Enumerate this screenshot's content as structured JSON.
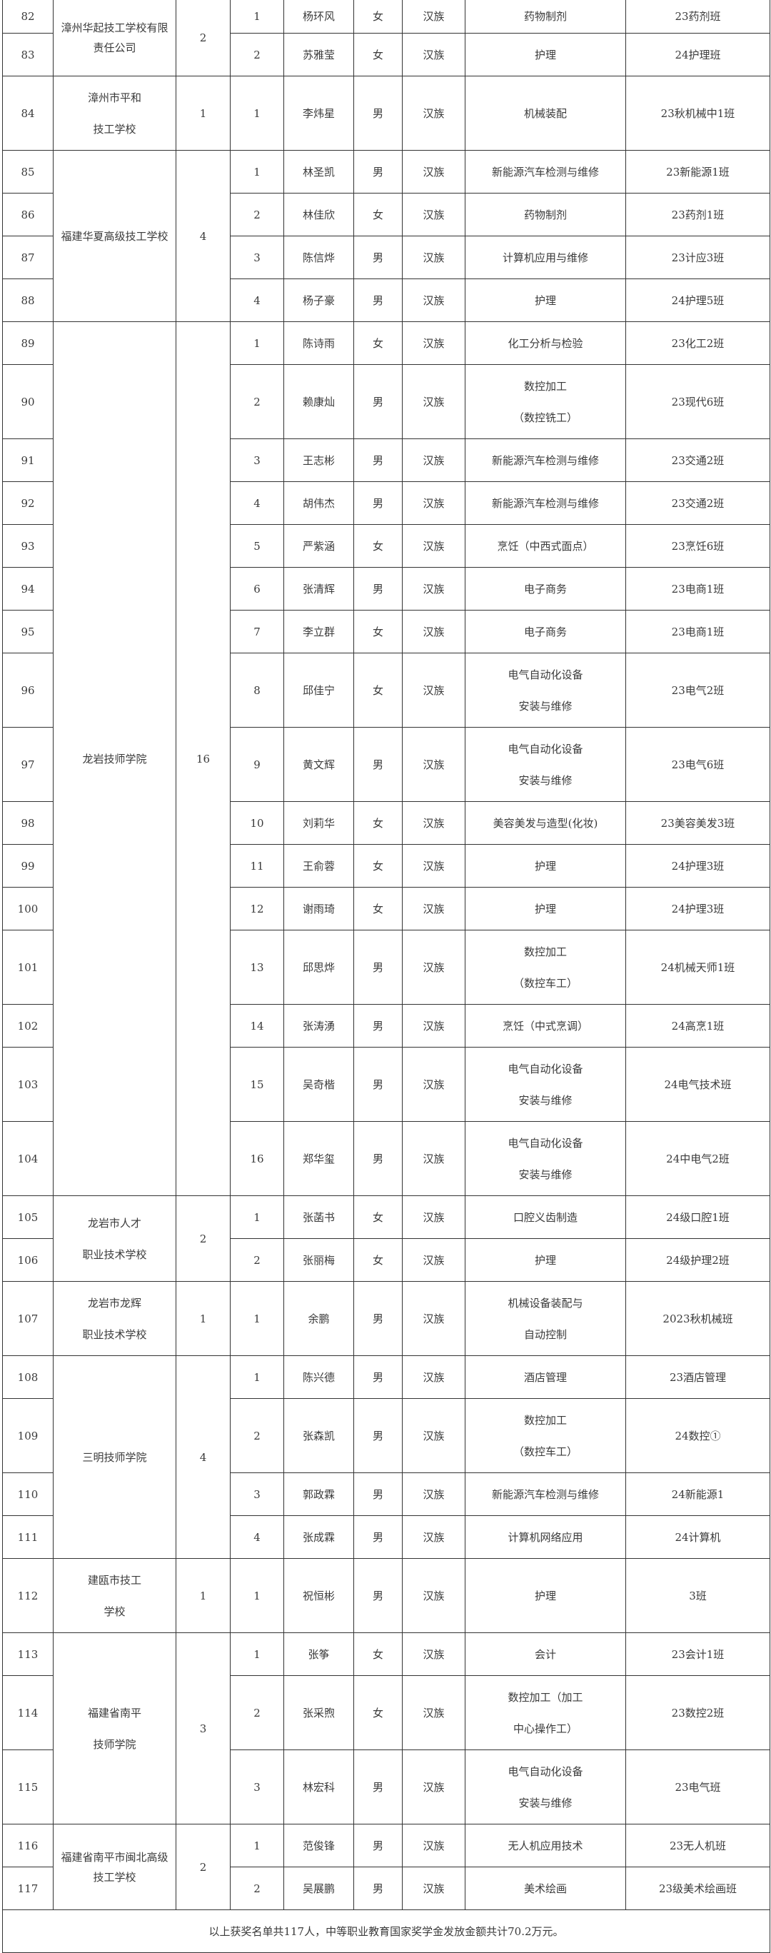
{
  "groups": [
    {
      "school": "漳州华起技工学校有限责任公司",
      "count": "2",
      "students": [
        {
          "no": "82",
          "idx": "1",
          "name": "杨环风",
          "gender": "女",
          "ethnicity": "汉族",
          "major": "药物制剂",
          "class": "23药剂班"
        },
        {
          "no": "83",
          "idx": "2",
          "name": "苏雅莹",
          "gender": "女",
          "ethnicity": "汉族",
          "major": "护理",
          "class": "24护理班"
        }
      ]
    },
    {
      "school": "漳州市平和\n技工学校",
      "count": "1",
      "students": [
        {
          "no": "84",
          "idx": "1",
          "name": "李炜星",
          "gender": "男",
          "ethnicity": "汉族",
          "major": "机械装配",
          "class": "23秋机械中1班"
        }
      ]
    },
    {
      "school": "福建华夏高级技工学校",
      "count": "4",
      "students": [
        {
          "no": "85",
          "idx": "1",
          "name": "林圣凯",
          "gender": "男",
          "ethnicity": "汉族",
          "major": "新能源汽车检测与维修",
          "class": "23新能源1班"
        },
        {
          "no": "86",
          "idx": "2",
          "name": "林佳欣",
          "gender": "女",
          "ethnicity": "汉族",
          "major": "药物制剂",
          "class": "23药剂1班"
        },
        {
          "no": "87",
          "idx": "3",
          "name": "陈信烨",
          "gender": "男",
          "ethnicity": "汉族",
          "major": "计算机应用与维修",
          "class": "23计应3班"
        },
        {
          "no": "88",
          "idx": "4",
          "name": "杨子豪",
          "gender": "男",
          "ethnicity": "汉族",
          "major": "护理",
          "class": "24护理5班"
        }
      ]
    },
    {
      "school": "龙岩技师学院",
      "count": "16",
      "students": [
        {
          "no": "89",
          "idx": "1",
          "name": "陈诗雨",
          "gender": "女",
          "ethnicity": "汉族",
          "major": "化工分析与检验",
          "class": "23化工2班"
        },
        {
          "no": "90",
          "idx": "2",
          "name": "赖康灿",
          "gender": "男",
          "ethnicity": "汉族",
          "major": "数控加工\n（数控铣工）",
          "class": "23现代6班"
        },
        {
          "no": "91",
          "idx": "3",
          "name": "王志彬",
          "gender": "男",
          "ethnicity": "汉族",
          "major": "新能源汽车检测与维修",
          "class": "23交通2班"
        },
        {
          "no": "92",
          "idx": "4",
          "name": "胡伟杰",
          "gender": "男",
          "ethnicity": "汉族",
          "major": "新能源汽车检测与维修",
          "class": "23交通2班"
        },
        {
          "no": "93",
          "idx": "5",
          "name": "严紫涵",
          "gender": "女",
          "ethnicity": "汉族",
          "major": "烹饪（中西式面点）",
          "class": "23烹饪6班"
        },
        {
          "no": "94",
          "idx": "6",
          "name": "张清辉",
          "gender": "男",
          "ethnicity": "汉族",
          "major": "电子商务",
          "class": "23电商1班"
        },
        {
          "no": "95",
          "idx": "7",
          "name": "李立群",
          "gender": "女",
          "ethnicity": "汉族",
          "major": "电子商务",
          "class": "23电商1班"
        },
        {
          "no": "96",
          "idx": "8",
          "name": "邱佳宁",
          "gender": "女",
          "ethnicity": "汉族",
          "major": "电气自动化设备\n安装与维修",
          "class": "23电气2班"
        },
        {
          "no": "97",
          "idx": "9",
          "name": "黄文辉",
          "gender": "男",
          "ethnicity": "汉族",
          "major": "电气自动化设备\n安装与维修",
          "class": "23电气6班"
        },
        {
          "no": "98",
          "idx": "10",
          "name": "刘莉华",
          "gender": "女",
          "ethnicity": "汉族",
          "major": "美容美发与造型(化妆)",
          "class": "23美容美发3班"
        },
        {
          "no": "99",
          "idx": "11",
          "name": "王俞蓉",
          "gender": "女",
          "ethnicity": "汉族",
          "major": "护理",
          "class": "24护理3班"
        },
        {
          "no": "100",
          "idx": "12",
          "name": "谢雨琦",
          "gender": "女",
          "ethnicity": "汉族",
          "major": "护理",
          "class": "24护理3班"
        },
        {
          "no": "101",
          "idx": "13",
          "name": "邱思烨",
          "gender": "男",
          "ethnicity": "汉族",
          "major": "数控加工\n（数控车工）",
          "class": "24机械天师1班"
        },
        {
          "no": "102",
          "idx": "14",
          "name": "张涛湧",
          "gender": "男",
          "ethnicity": "汉族",
          "major": "烹饪（中式烹调）",
          "class": "24高烹1班"
        },
        {
          "no": "103",
          "idx": "15",
          "name": "吴奇楷",
          "gender": "男",
          "ethnicity": "汉族",
          "major": "电气自动化设备\n安装与维修",
          "class": "24电气技术班"
        },
        {
          "no": "104",
          "idx": "16",
          "name": "郑华玺",
          "gender": "男",
          "ethnicity": "汉族",
          "major": "电气自动化设备\n安装与维修",
          "class": "24中电气2班"
        }
      ]
    },
    {
      "school": "龙岩市人才\n职业技术学校",
      "count": "2",
      "students": [
        {
          "no": "105",
          "idx": "1",
          "name": "张菡书",
          "gender": "女",
          "ethnicity": "汉族",
          "major": "口腔义齿制造",
          "class": "24级口腔1班"
        },
        {
          "no": "106",
          "idx": "2",
          "name": "张丽梅",
          "gender": "女",
          "ethnicity": "汉族",
          "major": "护理",
          "class": "24级护理2班"
        }
      ]
    },
    {
      "school": "龙岩市龙辉\n职业技术学校",
      "count": "1",
      "students": [
        {
          "no": "107",
          "idx": "1",
          "name": "余鹏",
          "gender": "男",
          "ethnicity": "汉族",
          "major": "机械设备装配与\n自动控制",
          "class": "2023秋机械班"
        }
      ]
    },
    {
      "school": "三明技师学院",
      "count": "4",
      "students": [
        {
          "no": "108",
          "idx": "1",
          "name": "陈兴德",
          "gender": "男",
          "ethnicity": "汉族",
          "major": "酒店管理",
          "class": "23酒店管理"
        },
        {
          "no": "109",
          "idx": "2",
          "name": "张森凯",
          "gender": "男",
          "ethnicity": "汉族",
          "major": "数控加工\n（数控车工）",
          "class": "24数控①"
        },
        {
          "no": "110",
          "idx": "3",
          "name": "郭政霖",
          "gender": "男",
          "ethnicity": "汉族",
          "major": "新能源汽车检测与维修",
          "class": "24新能源1"
        },
        {
          "no": "111",
          "idx": "4",
          "name": "张成霖",
          "gender": "男",
          "ethnicity": "汉族",
          "major": "计算机网络应用",
          "class": "24计算机"
        }
      ]
    },
    {
      "school": "建瓯市技工\n学校",
      "count": "1",
      "students": [
        {
          "no": "112",
          "idx": "1",
          "name": "祝恒彬",
          "gender": "男",
          "ethnicity": "汉族",
          "major": "护理",
          "class": "3班"
        }
      ]
    },
    {
      "school": "福建省南平\n技师学院",
      "count": "3",
      "students": [
        {
          "no": "113",
          "idx": "1",
          "name": "张筝",
          "gender": "女",
          "ethnicity": "汉族",
          "major": "会计",
          "class": "23会计1班"
        },
        {
          "no": "114",
          "idx": "2",
          "name": "张采煦",
          "gender": "女",
          "ethnicity": "汉族",
          "major": "数控加工（加工\n中心操作工）",
          "class": "23数控2班"
        },
        {
          "no": "115",
          "idx": "3",
          "name": "林宏科",
          "gender": "男",
          "ethnicity": "汉族",
          "major": "电气自动化设备\n安装与维修",
          "class": "23电气班"
        }
      ]
    },
    {
      "school": "福建省南平市闽北高级技工学校",
      "count": "2",
      "students": [
        {
          "no": "116",
          "idx": "1",
          "name": "范俊锋",
          "gender": "男",
          "ethnicity": "汉族",
          "major": "无人机应用技术",
          "class": "23无人机班"
        },
        {
          "no": "117",
          "idx": "2",
          "name": "吴展鹏",
          "gender": "男",
          "ethnicity": "汉族",
          "major": "美术绘画",
          "class": "23级美术绘画班"
        }
      ]
    }
  ],
  "footer": "以上获奖名单共117人，中等职业教育国家奖学金发放金额共计70.2万元。"
}
